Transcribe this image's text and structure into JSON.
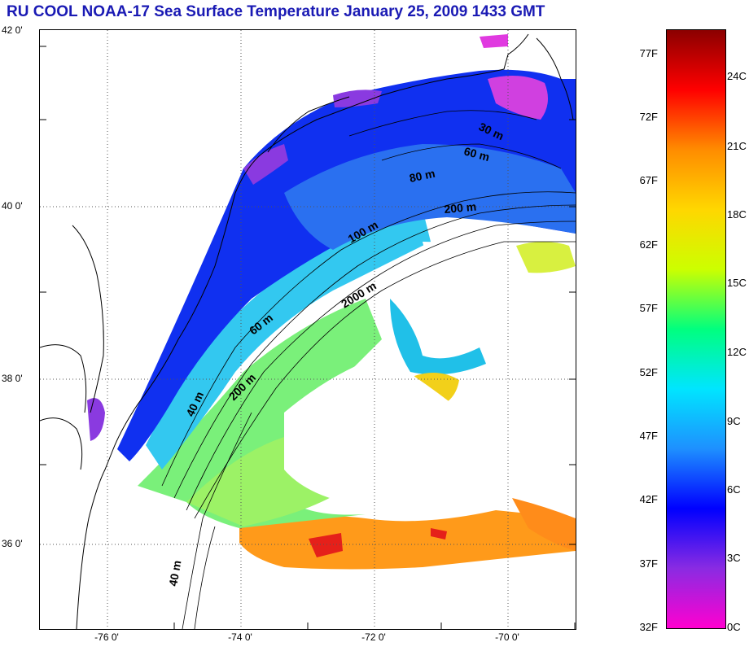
{
  "title": "RU COOL  NOAA-17 Sea Surface Temperature January 25, 2009 1433 GMT",
  "map": {
    "lat_labels": [
      {
        "text": "42 0'",
        "lat": 42
      },
      {
        "text": "40 0'",
        "lat": 40
      },
      {
        "text": "38 0'",
        "lat": 38
      },
      {
        "text": "36 0'",
        "lat": 36
      }
    ],
    "lon_labels": [
      {
        "text": "-76 0'",
        "lon": -76
      },
      {
        "text": "-74 0'",
        "lon": -74
      },
      {
        "text": "-72 0'",
        "lon": -72
      },
      {
        "text": "-70 0'",
        "lon": -70
      }
    ],
    "contour_labels": [
      {
        "text": "30 m"
      },
      {
        "text": "60 m"
      },
      {
        "text": "80 m"
      },
      {
        "text": "200 m"
      },
      {
        "text": "100 m"
      },
      {
        "text": "2000 m"
      },
      {
        "text": "60 m"
      },
      {
        "text": "200 m"
      },
      {
        "text": "40 m"
      },
      {
        "text": "40 m"
      }
    ]
  },
  "colorbar": {
    "fahrenheit_labels": [
      "77F",
      "72F",
      "67F",
      "62F",
      "57F",
      "52F",
      "47F",
      "42F",
      "37F",
      "32F"
    ],
    "celsius_labels": [
      "24C",
      "21C",
      "18C",
      "15C",
      "12C",
      "9C",
      "6C",
      "3C",
      "0C"
    ],
    "colors": [
      "#ff00d0",
      "#8a2be2",
      "#0000ff",
      "#1e90ff",
      "#00e5ff",
      "#00ff7f",
      "#ccff00",
      "#ffd700",
      "#ff8c00",
      "#ff0000",
      "#8b0000"
    ]
  }
}
